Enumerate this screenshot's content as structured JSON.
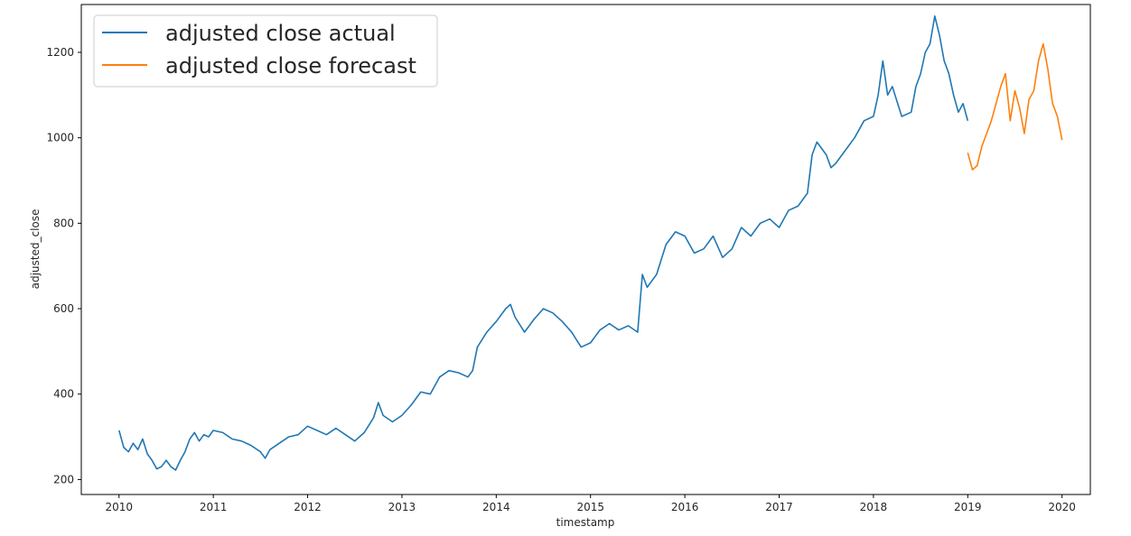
{
  "chart_data": {
    "type": "line",
    "title": "",
    "xlabel": "timestamp",
    "ylabel": "adjusted_close",
    "xlim": [
      2009.6,
      2020.3
    ],
    "ylim": [
      165,
      1312
    ],
    "x_ticks": [
      2010,
      2011,
      2012,
      2013,
      2014,
      2015,
      2016,
      2017,
      2018,
      2019,
      2020
    ],
    "x_tick_labels": [
      "2010",
      "2011",
      "2012",
      "2013",
      "2014",
      "2015",
      "2016",
      "2017",
      "2018",
      "2019",
      "2020"
    ],
    "y_ticks": [
      200,
      400,
      600,
      800,
      1000,
      1200
    ],
    "y_tick_labels": [
      "200",
      "400",
      "600",
      "800",
      "1000",
      "1200"
    ],
    "grid": false,
    "legend": {
      "position": "top-left"
    },
    "series": [
      {
        "name": "adjusted close actual",
        "color": "#1f77b4",
        "x": [
          2010.0,
          2010.05,
          2010.1,
          2010.15,
          2010.2,
          2010.25,
          2010.3,
          2010.35,
          2010.4,
          2010.45,
          2010.5,
          2010.55,
          2010.6,
          2010.65,
          2010.7,
          2010.75,
          2010.8,
          2010.85,
          2010.9,
          2010.95,
          2011.0,
          2011.1,
          2011.2,
          2011.3,
          2011.4,
          2011.5,
          2011.55,
          2011.6,
          2011.7,
          2011.8,
          2011.9,
          2012.0,
          2012.1,
          2012.2,
          2012.3,
          2012.4,
          2012.5,
          2012.6,
          2012.7,
          2012.75,
          2012.8,
          2012.9,
          2013.0,
          2013.1,
          2013.2,
          2013.3,
          2013.4,
          2013.5,
          2013.6,
          2013.7,
          2013.75,
          2013.8,
          2013.9,
          2014.0,
          2014.1,
          2014.15,
          2014.2,
          2014.3,
          2014.35,
          2014.4,
          2014.5,
          2014.6,
          2014.7,
          2014.8,
          2014.9,
          2015.0,
          2015.1,
          2015.2,
          2015.3,
          2015.4,
          2015.5,
          2015.52,
          2015.55,
          2015.6,
          2015.7,
          2015.8,
          2015.9,
          2016.0,
          2016.1,
          2016.2,
          2016.3,
          2016.4,
          2016.5,
          2016.6,
          2016.7,
          2016.8,
          2016.9,
          2017.0,
          2017.1,
          2017.2,
          2017.3,
          2017.35,
          2017.4,
          2017.5,
          2017.55,
          2017.6,
          2017.7,
          2017.8,
          2017.9,
          2018.0,
          2018.05,
          2018.1,
          2018.15,
          2018.2,
          2018.3,
          2018.4,
          2018.45,
          2018.5,
          2018.55,
          2018.6,
          2018.65,
          2018.7,
          2018.75,
          2018.8,
          2018.85,
          2018.9,
          2018.95,
          2019.0
        ],
        "y": [
          315,
          275,
          265,
          285,
          270,
          295,
          260,
          245,
          225,
          230,
          245,
          230,
          222,
          245,
          265,
          295,
          310,
          290,
          305,
          300,
          315,
          310,
          295,
          290,
          280,
          265,
          250,
          270,
          285,
          300,
          305,
          325,
          315,
          305,
          320,
          305,
          290,
          310,
          345,
          380,
          350,
          335,
          350,
          375,
          405,
          400,
          440,
          455,
          450,
          440,
          455,
          510,
          545,
          570,
          600,
          610,
          580,
          545,
          560,
          575,
          600,
          590,
          570,
          545,
          510,
          520,
          550,
          565,
          550,
          560,
          545,
          600,
          680,
          650,
          680,
          750,
          780,
          770,
          730,
          740,
          770,
          720,
          740,
          790,
          770,
          800,
          810,
          790,
          830,
          840,
          870,
          960,
          990,
          960,
          930,
          940,
          970,
          1000,
          1040,
          1050,
          1100,
          1180,
          1100,
          1120,
          1050,
          1060,
          1120,
          1150,
          1200,
          1220,
          1285,
          1240,
          1180,
          1150,
          1100,
          1060,
          1080,
          1040
        ]
      },
      {
        "name": "adjusted close forecast",
        "color": "#ff7f0e",
        "x": [
          2019.0,
          2019.05,
          2019.1,
          2019.15,
          2019.2,
          2019.25,
          2019.3,
          2019.35,
          2019.4,
          2019.45,
          2019.5,
          2019.55,
          2019.6,
          2019.65,
          2019.7,
          2019.75,
          2019.8,
          2019.85,
          2019.9,
          2019.95,
          2020.0
        ],
        "y": [
          965,
          925,
          935,
          980,
          1010,
          1040,
          1080,
          1120,
          1150,
          1040,
          1110,
          1070,
          1010,
          1090,
          1110,
          1180,
          1220,
          1160,
          1080,
          1050,
          995
        ]
      }
    ]
  }
}
